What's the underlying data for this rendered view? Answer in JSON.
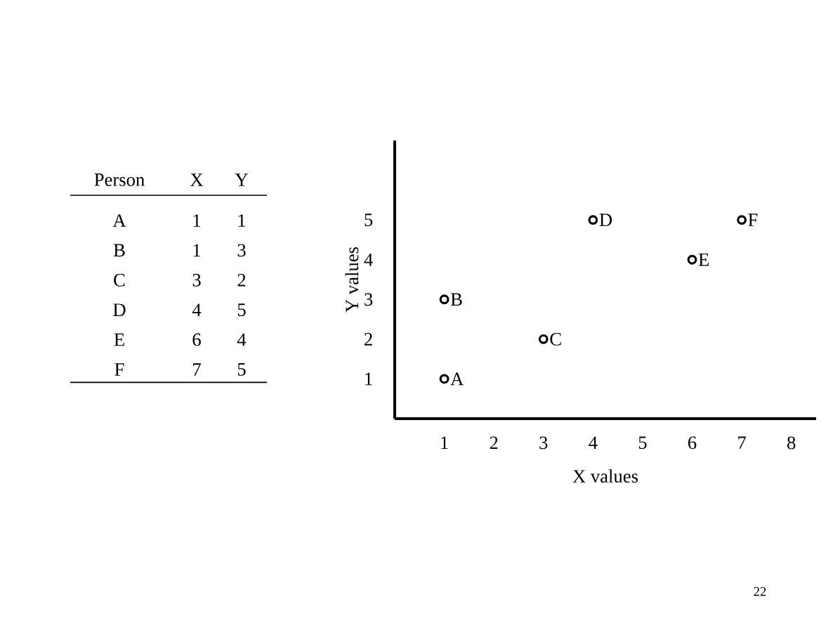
{
  "chart_data": [
    {
      "type": "other",
      "xlabel": "Person",
      "data_labels": true,
      "categories": [
        "A",
        "B",
        "C",
        "D",
        "E",
        "F"
      ],
      "series": [
        {
          "name": "X",
          "values": [
            1,
            1,
            3,
            4,
            6,
            7
          ]
        },
        {
          "name": "Y",
          "values": [
            1,
            3,
            2,
            5,
            4,
            5
          ]
        }
      ]
    },
    {
      "type": "scatter",
      "xlabel": "X values",
      "ylabel": "Y values",
      "x": [
        1,
        1,
        3,
        4,
        6,
        7
      ],
      "values": [
        1,
        3,
        2,
        5,
        4,
        5
      ],
      "color": "#000000",
      "marker": "circle",
      "xlim": [
        0,
        8.5
      ],
      "xticks": [
        1,
        2,
        3,
        4,
        5,
        6,
        7,
        8
      ],
      "ylim": [
        0,
        7
      ],
      "yticks": [
        1,
        2,
        3,
        4,
        5
      ],
      "annotations": [
        "22",
        {
          "text": "A",
          "x": 1,
          "y": 1
        },
        {
          "text": "B",
          "x": 1,
          "y": 3
        },
        {
          "text": "C",
          "x": 3,
          "y": 2
        },
        {
          "text": "D",
          "x": 4,
          "y": 5
        },
        {
          "text": "E",
          "x": 6,
          "y": 4
        },
        {
          "text": "F",
          "x": 7,
          "y": 5
        }
      ]
    }
  ]
}
